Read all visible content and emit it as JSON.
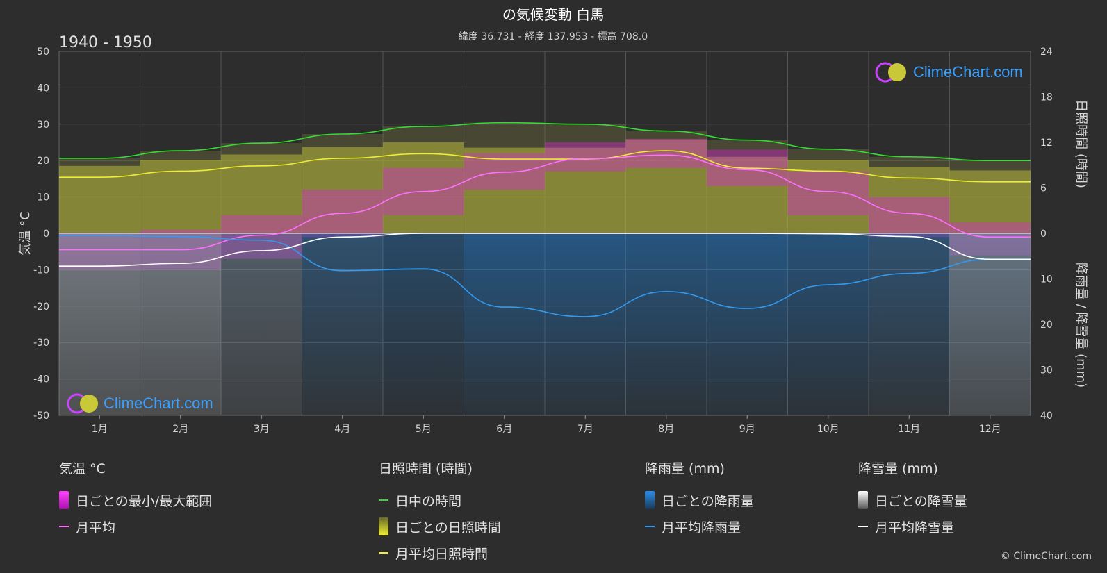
{
  "header": {
    "title": "の気候変動 白馬",
    "subtitle": "緯度 36.731 - 経度 137.953 - 標高 708.0",
    "period": "1940 - 1950"
  },
  "axes": {
    "left_label": "気温 °C",
    "right_top_label": "日照時間 (時間)",
    "right_bottom_label": "降雨量 / 降雪量 (mm)"
  },
  "logo_text": "ClimeChart.com",
  "copyright": "© ClimeChart.com",
  "legend": {
    "temperature": {
      "heading": "気温 °C",
      "range": "日ごとの最小/最大範囲",
      "mean": "月平均"
    },
    "sunshine": {
      "heading": "日照時間 (時間)",
      "daylight": "日中の時間",
      "daily": "日ごとの日照時間",
      "mean": "月平均日照時間"
    },
    "rain": {
      "heading": "降雨量 (mm)",
      "daily": "日ごとの降雨量",
      "mean": "月平均降雨量"
    },
    "snow": {
      "heading": "降雪量 (mm)",
      "daily": "日ごとの降雪量",
      "mean": "月平均降雪量"
    }
  },
  "colors": {
    "background": "#2d2d2d",
    "temp_range": "#e020e0",
    "temp_mean": "#ff70ff",
    "daylight": "#33dd33",
    "sunshine": "#b8b83a",
    "sunshine_mean": "#eeee33",
    "rain": "#1f78c8",
    "rain_mean": "#3399ee",
    "snow": "#a0a0a0",
    "snow_mean": "#ffffff"
  },
  "chart_data": {
    "type": "line",
    "categories": [
      "1月",
      "2月",
      "3月",
      "4月",
      "5月",
      "6月",
      "7月",
      "8月",
      "9月",
      "10月",
      "11月",
      "12月"
    ],
    "y_left": {
      "label": "気温 °C",
      "ylim": [
        -50,
        50
      ],
      "ticks": [
        50,
        40,
        30,
        20,
        10,
        0,
        -10,
        -20,
        -30,
        -40,
        -50
      ]
    },
    "y_right_top": {
      "label": "日照時間 (時間)",
      "ylim": [
        0,
        24
      ],
      "ticks": [
        24,
        18,
        12,
        6,
        0
      ]
    },
    "y_right_bottom": {
      "label": "降雨量 / 降雪量 (mm)",
      "ylim": [
        0,
        40
      ],
      "ticks": [
        0,
        10,
        20,
        30,
        40
      ]
    },
    "series": [
      {
        "name": "日中の時間",
        "axis": "sun",
        "values": [
          9.9,
          10.9,
          11.9,
          13.1,
          14.1,
          14.6,
          14.4,
          13.5,
          12.3,
          11.1,
          10.1,
          9.6
        ]
      },
      {
        "name": "月平均日照時間",
        "axis": "sun",
        "values": [
          7.4,
          8.2,
          8.9,
          9.9,
          10.5,
          9.8,
          9.8,
          10.9,
          8.6,
          8.2,
          7.3,
          6.8
        ]
      },
      {
        "name": "月平均",
        "axis": "temp",
        "values": [
          -4.5,
          -4.5,
          -0.5,
          5.5,
          11.5,
          16.8,
          20.5,
          21.5,
          17.5,
          11.5,
          5.5,
          -1.0
        ]
      },
      {
        "name": "月平均降雨量",
        "axis": "precip",
        "values": [
          0.5,
          0.7,
          1.5,
          8.2,
          7.8,
          16.2,
          18.3,
          12.8,
          16.5,
          11.3,
          8.8,
          5.7
        ]
      },
      {
        "name": "月平均降雪量",
        "axis": "precip",
        "values": [
          7.2,
          6.6,
          3.8,
          0.8,
          0.0,
          0.0,
          0.0,
          0.0,
          0.0,
          0.1,
          0.7,
          5.7
        ]
      }
    ],
    "bands": [
      {
        "name": "日ごとの最小/最大範囲",
        "axis": "temp",
        "min": [
          -10,
          -10,
          -7,
          -1,
          5,
          12,
          17,
          18,
          13,
          5,
          -1,
          -6
        ],
        "max": [
          0,
          1,
          5,
          12,
          18,
          22,
          25,
          26,
          23,
          17,
          10,
          3
        ]
      }
    ],
    "grid": true
  }
}
